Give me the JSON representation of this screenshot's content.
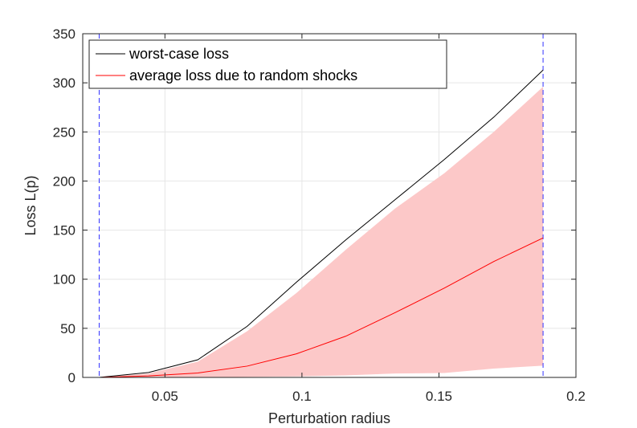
{
  "chart_data": {
    "type": "line",
    "xlabel": "Perturbation radius",
    "ylabel": "Loss L(p)",
    "xlim": [
      0.02,
      0.2
    ],
    "ylim": [
      0,
      350
    ],
    "xticks": [
      0.05,
      0.1,
      0.15,
      0.2
    ],
    "xtick_labels": [
      "0.05",
      "0.1",
      "0.15",
      "0.2"
    ],
    "yticks": [
      0,
      50,
      100,
      150,
      200,
      250,
      300,
      350
    ],
    "ytick_labels": [
      "0",
      "50",
      "100",
      "150",
      "200",
      "250",
      "300",
      "350"
    ],
    "grid": true,
    "legend_position": "top-left",
    "colors": {
      "worst_case": "#000000",
      "average": "#ff0000",
      "band_fill": "#fcc8c8",
      "vline": "#3333ff",
      "grid": "#e6e6e6",
      "axis": "#262626"
    },
    "series": [
      {
        "name": "worst-case loss",
        "x": [
          0.026,
          0.044,
          0.062,
          0.08,
          0.098,
          0.116,
          0.134,
          0.152,
          0.17,
          0.188
        ],
        "y": [
          0,
          5,
          18,
          52,
          97,
          140,
          181,
          222,
          265,
          313
        ]
      },
      {
        "name": "average loss due to random shocks",
        "x": [
          0.026,
          0.044,
          0.062,
          0.08,
          0.098,
          0.116,
          0.134,
          0.152,
          0.17,
          0.188
        ],
        "y": [
          0,
          1.5,
          4.5,
          11.5,
          24,
          42,
          66,
          91,
          118,
          142
        ]
      }
    ],
    "band": {
      "x": [
        0.026,
        0.044,
        0.062,
        0.08,
        0.098,
        0.116,
        0.134,
        0.152,
        0.17,
        0.188
      ],
      "upper": [
        0,
        4,
        16,
        47,
        86,
        130,
        172,
        208,
        250,
        296
      ],
      "lower": [
        0,
        0,
        0,
        0.5,
        1,
        2,
        4,
        4.5,
        9,
        12
      ]
    },
    "vlines": [
      0.026,
      0.188
    ]
  }
}
